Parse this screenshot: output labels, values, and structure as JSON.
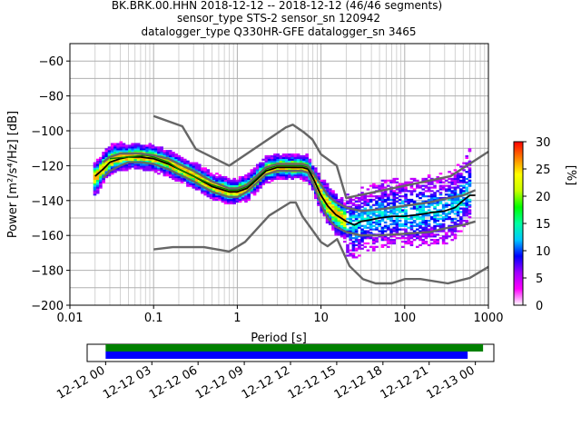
{
  "header": {
    "line1": "BK.BRK.00.HHN   2018-12-12 -- 2018-12-12  (46/46 segments)",
    "line2": "sensor_type STS-2 sensor_sn 120942",
    "line3": "datalogger_type Q330HR-GFE datalogger_sn 3465"
  },
  "colorbar": {
    "label": "[%]",
    "ticks": [
      "0",
      "5",
      "10",
      "15",
      "20",
      "25",
      "30"
    ],
    "range": [
      0,
      30
    ],
    "colormap": [
      "#ffffff",
      "#ff00ff",
      "#a000ff",
      "#0000ff",
      "#00c8ff",
      "#00ffa0",
      "#00ff00",
      "#c8ff00",
      "#ffff00",
      "#ff8000",
      "#ff0000"
    ]
  },
  "timeline": {
    "tick_labels": [
      "12-12 00",
      "12-12 03",
      "12-12 06",
      "12-12 09",
      "12-12 12",
      "12-12 15",
      "12-12 18",
      "12-12 21",
      "12-13 00"
    ],
    "range_hours": [
      -1.2,
      25.2
    ],
    "segments": [
      {
        "color": "#008000",
        "start_hours": 0,
        "end_hours": 24.5
      },
      {
        "color": "#0000ff",
        "start_hours": 0,
        "end_hours": 23.5
      }
    ]
  },
  "chart_data": {
    "type": "heatmap",
    "title": "BK.BRK.00.HHN   2018-12-12 -- 2018-12-12  (46/46 segments)",
    "xlabel": "Period [s]",
    "ylabel": "Power [m²/s⁴/Hz] [dB]",
    "xscale": "log",
    "xlim": [
      0.01,
      1000
    ],
    "ylim": [
      -200,
      -50
    ],
    "xticks": [
      "0.01",
      "0.1",
      "1",
      "10",
      "100",
      "1000"
    ],
    "yticks": [
      "−200",
      "−180",
      "−160",
      "−140",
      "−120",
      "−100",
      "−80",
      "−60"
    ],
    "grid": true,
    "series": [
      {
        "role": "mode",
        "color": "#000000",
        "x": [
          0.02,
          0.025,
          0.03,
          0.04,
          0.05,
          0.07,
          0.1,
          0.15,
          0.2,
          0.3,
          0.5,
          0.8,
          1.0,
          1.3,
          1.7,
          2.2,
          3.0,
          4.0,
          5.0,
          6.0,
          7.0,
          8.0,
          10,
          12,
          15,
          20,
          25,
          30,
          40,
          50,
          70,
          100,
          150,
          200,
          300,
          400,
          500,
          600,
          700
        ],
        "y": [
          -126,
          -122,
          -118,
          -116,
          -115,
          -115,
          -116,
          -119,
          -122,
          -126,
          -132,
          -135,
          -135,
          -133,
          -128,
          -123,
          -121,
          -121,
          -121,
          -121,
          -122,
          -127,
          -137,
          -143,
          -148,
          -152,
          -154,
          -152,
          -151,
          -150,
          -149,
          -149,
          -148,
          -147,
          -146,
          -144,
          -140,
          -137,
          -137
        ]
      },
      {
        "role": "mean",
        "color": "#008000",
        "x": [
          0.03,
          0.05,
          0.08,
          0.1,
          0.15,
          0.2,
          0.3,
          0.5,
          0.8,
          1.0,
          1.3,
          1.7,
          2.2,
          3.0,
          4.0,
          5.0,
          6.0,
          7.0,
          8.0
        ],
        "y": [
          -116,
          -115,
          -114,
          -115,
          -118,
          -122,
          -126,
          -131,
          -134,
          -134,
          -132,
          -127,
          -122,
          -120,
          -120,
          -120,
          -120,
          -121,
          -125
        ]
      },
      {
        "role": "percentile",
        "color": "#666666",
        "x": [
          0.025,
          0.03,
          0.04,
          0.05,
          0.07,
          0.1,
          0.15,
          0.2,
          0.3,
          0.5,
          0.8,
          1.0,
          1.3,
          1.7,
          2.2,
          3.0,
          4.0,
          5.0,
          6.0,
          7.0,
          8.0,
          10,
          12,
          15,
          20,
          30,
          50,
          100,
          200,
          300,
          500,
          700
        ],
        "y": [
          -118,
          -115,
          -113,
          -113,
          -113,
          -114,
          -116,
          -119,
          -123,
          -129,
          -133,
          -133,
          -131,
          -126,
          -121,
          -119,
          -119,
          -119,
          -119,
          -120,
          -124,
          -131,
          -137,
          -141,
          -144,
          -146,
          -145,
          -143,
          -141,
          -139,
          -137,
          -134
        ]
      },
      {
        "role": "percentile",
        "color": "#666666",
        "x": [
          0.025,
          0.03,
          0.04,
          0.05,
          0.07,
          0.1,
          0.15,
          0.2,
          0.3,
          0.5,
          0.8,
          1.0,
          1.3,
          1.7,
          2.2,
          3.0,
          4.0,
          5.0,
          6.0,
          7.0,
          8.0,
          10,
          12,
          15,
          20,
          30,
          50,
          100,
          200,
          300,
          500,
          700
        ],
        "y": [
          -127,
          -123,
          -120,
          -118,
          -118,
          -119,
          -122,
          -125,
          -129,
          -135,
          -138,
          -138,
          -135,
          -130,
          -125,
          -123,
          -123,
          -123,
          -123,
          -124,
          -130,
          -142,
          -150,
          -155,
          -158,
          -160,
          -160,
          -159,
          -158,
          -156,
          -154,
          -152
        ]
      },
      {
        "role": "high_noise_model",
        "color": "#666666",
        "x": [
          0.1,
          0.22,
          0.32,
          0.8,
          3.8,
          4.6,
          6.3,
          7.9,
          10,
          15.4,
          20,
          354.8,
          1000
        ],
        "y": [
          -91.5,
          -97.4,
          -110.5,
          -120,
          -98,
          -96.5,
          -101,
          -105,
          -113.5,
          -120,
          -138.5,
          -126,
          -112
        ]
      },
      {
        "role": "low_noise_model",
        "color": "#666666",
        "x": [
          0.1,
          0.17,
          0.4,
          0.8,
          1.24,
          2.4,
          4.3,
          5.0,
          6.0,
          10,
          12,
          15.6,
          21.9,
          31.6,
          45,
          70,
          101,
          154,
          328,
          600,
          1000
        ],
        "y": [
          -168,
          -166.7,
          -166.7,
          -169.2,
          -163.7,
          -148.6,
          -141.1,
          -141.1,
          -149,
          -163.8,
          -166.2,
          -162.1,
          -177.5,
          -185,
          -187.5,
          -187.5,
          -185,
          -185,
          -187.5,
          -184.4,
          -178
        ]
      }
    ]
  }
}
